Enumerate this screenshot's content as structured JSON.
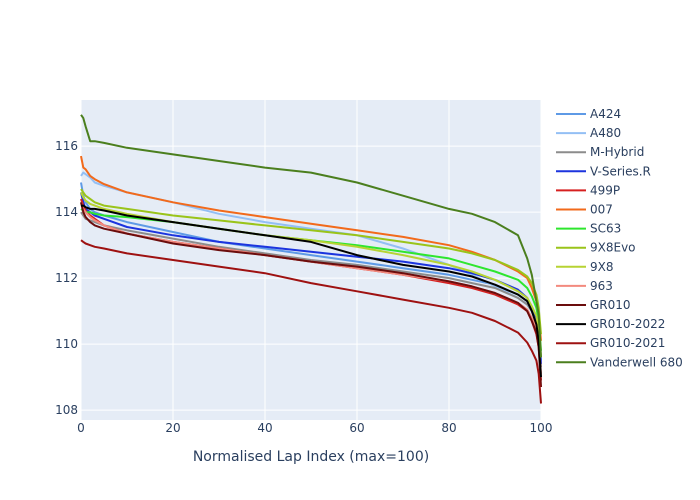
{
  "chart_data": {
    "type": "line",
    "title": "",
    "xlabel": "Normalised Lap Index (max=100)",
    "ylabel": "",
    "xlim": [
      0,
      100
    ],
    "ylim": [
      107.7,
      117.4
    ],
    "x_ticks": [
      0,
      20,
      40,
      60,
      80,
      100
    ],
    "y_ticks": [
      108,
      110,
      112,
      114,
      116
    ],
    "grid": true,
    "legend_position": "right",
    "plot_background": "#e5ecf6",
    "x": [
      0,
      0.5,
      1,
      2,
      3,
      5,
      10,
      20,
      30,
      40,
      50,
      60,
      70,
      80,
      85,
      90,
      95,
      97,
      98,
      99,
      99.5,
      100
    ],
    "series": [
      {
        "name": "A424",
        "color": "#5e9ae6",
        "values": [
          114.9,
          114.5,
          114.3,
          114.1,
          114.0,
          113.9,
          113.7,
          113.4,
          113.1,
          112.9,
          112.7,
          112.5,
          112.3,
          112.1,
          111.95,
          111.8,
          111.5,
          111.3,
          111.0,
          110.6,
          110.2,
          109.5
        ]
      },
      {
        "name": "A480",
        "color": "#93bff4",
        "values": [
          115.1,
          115.2,
          115.15,
          115.05,
          114.9,
          114.8,
          114.6,
          114.3,
          113.95,
          113.7,
          113.5,
          113.3,
          112.9,
          112.4,
          112.1,
          111.75,
          111.4,
          111.2,
          111.0,
          110.7,
          110.3,
          109.4
        ]
      },
      {
        "name": "M-Hybrid",
        "color": "#8c8c8c",
        "values": [
          114.0,
          113.9,
          113.8,
          113.75,
          113.7,
          113.6,
          113.45,
          113.2,
          112.95,
          112.75,
          112.55,
          112.4,
          112.2,
          112.0,
          111.85,
          111.7,
          111.4,
          111.2,
          111.0,
          110.7,
          110.3,
          109.3
        ]
      },
      {
        "name": "V-Series.R",
        "color": "#1c34de",
        "values": [
          114.6,
          114.3,
          114.1,
          114.0,
          113.9,
          113.8,
          113.55,
          113.3,
          113.1,
          112.95,
          112.8,
          112.65,
          112.5,
          112.3,
          112.15,
          111.95,
          111.65,
          111.4,
          111.1,
          110.8,
          110.4,
          109.4
        ]
      },
      {
        "name": "499P",
        "color": "#d62020",
        "values": [
          114.4,
          114.2,
          114.05,
          113.9,
          113.8,
          113.6,
          113.35,
          113.1,
          112.9,
          112.7,
          112.5,
          112.3,
          112.1,
          111.85,
          111.7,
          111.5,
          111.2,
          111.0,
          110.7,
          110.3,
          109.9,
          108.9
        ]
      },
      {
        "name": "007",
        "color": "#f26a1b",
        "values": [
          115.7,
          115.35,
          115.3,
          115.1,
          115.0,
          114.85,
          114.6,
          114.3,
          114.05,
          113.85,
          113.65,
          113.45,
          113.25,
          113.0,
          112.8,
          112.55,
          112.2,
          112.0,
          111.7,
          111.3,
          110.9,
          110.1
        ]
      },
      {
        "name": "SC63",
        "color": "#2ee62e",
        "values": [
          114.1,
          114.05,
          114.0,
          114.0,
          113.95,
          113.9,
          113.85,
          113.7,
          113.5,
          113.3,
          113.15,
          113.0,
          112.8,
          112.6,
          112.4,
          112.2,
          111.95,
          111.7,
          111.45,
          111.1,
          110.7,
          109.8
        ]
      },
      {
        "name": "9X8Evo",
        "color": "#9ac41a",
        "values": [
          114.7,
          114.6,
          114.5,
          114.4,
          114.3,
          114.2,
          114.1,
          113.9,
          113.75,
          113.6,
          113.45,
          113.3,
          113.1,
          112.9,
          112.75,
          112.55,
          112.25,
          112.05,
          111.85,
          111.5,
          111.1,
          110.3
        ]
      },
      {
        "name": "9X8",
        "color": "#b7d333",
        "values": [
          114.6,
          114.45,
          114.35,
          114.25,
          114.2,
          114.1,
          113.95,
          113.7,
          113.5,
          113.3,
          113.15,
          112.95,
          112.7,
          112.4,
          112.2,
          111.95,
          111.6,
          111.4,
          111.15,
          110.85,
          110.45,
          109.6
        ]
      },
      {
        "name": "963",
        "color": "#f38a7e",
        "values": [
          114.3,
          114.1,
          114.0,
          113.85,
          113.75,
          113.6,
          113.35,
          113.1,
          112.9,
          112.7,
          112.5,
          112.3,
          112.1,
          111.9,
          111.75,
          111.55,
          111.25,
          111.05,
          110.8,
          110.5,
          110.1,
          109.1
        ]
      },
      {
        "name": "GR010",
        "color": "#6b0d0d",
        "values": [
          114.3,
          114.0,
          113.85,
          113.7,
          113.6,
          113.5,
          113.35,
          113.05,
          112.85,
          112.7,
          112.5,
          112.35,
          112.15,
          111.9,
          111.75,
          111.55,
          111.25,
          111.0,
          110.7,
          110.35,
          109.9,
          108.7
        ]
      },
      {
        "name": "GR010-2022",
        "color": "#000000",
        "values": [
          114.2,
          114.2,
          114.15,
          114.1,
          114.1,
          114.05,
          113.9,
          113.7,
          113.5,
          113.3,
          113.1,
          112.7,
          112.4,
          112.2,
          112.05,
          111.8,
          111.5,
          111.3,
          111.0,
          110.6,
          110.1,
          109.0
        ]
      },
      {
        "name": "GR010-2021",
        "color": "#9e1111",
        "values": [
          113.15,
          113.1,
          113.05,
          113.0,
          112.95,
          112.9,
          112.75,
          112.55,
          112.35,
          112.15,
          111.85,
          111.6,
          111.35,
          111.1,
          110.95,
          110.7,
          110.35,
          110.05,
          109.8,
          109.5,
          109.1,
          108.2
        ]
      },
      {
        "name": "Vanderwell 680",
        "color": "#4b7f1e",
        "values": [
          116.95,
          116.85,
          116.6,
          116.15,
          116.15,
          116.1,
          115.95,
          115.75,
          115.55,
          115.35,
          115.2,
          114.9,
          114.5,
          114.1,
          113.95,
          113.7,
          113.3,
          112.6,
          112.1,
          111.3,
          110.9,
          109.6
        ]
      }
    ]
  }
}
